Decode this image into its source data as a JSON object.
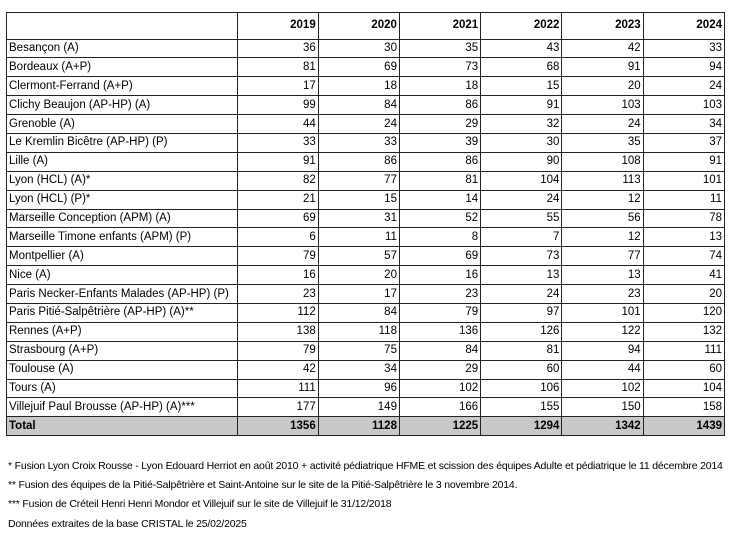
{
  "table": {
    "columns": [
      "",
      "2019",
      "2020",
      "2021",
      "2022",
      "2023",
      "2024"
    ],
    "rows": [
      {
        "name": "Besançon (A)",
        "values": [
          36,
          30,
          35,
          43,
          42,
          33
        ]
      },
      {
        "name": "Bordeaux (A+P)",
        "values": [
          81,
          69,
          73,
          68,
          91,
          94
        ]
      },
      {
        "name": "Clermont-Ferrand (A+P)",
        "values": [
          17,
          18,
          18,
          15,
          20,
          24
        ]
      },
      {
        "name": "Clichy Beaujon (AP-HP) (A)",
        "values": [
          99,
          84,
          86,
          91,
          103,
          103
        ]
      },
      {
        "name": "Grenoble (A)",
        "values": [
          44,
          24,
          29,
          32,
          24,
          34
        ]
      },
      {
        "name": "Le Kremlin Bicêtre (AP-HP) (P)",
        "values": [
          33,
          33,
          39,
          30,
          35,
          37
        ]
      },
      {
        "name": "Lille (A)",
        "values": [
          91,
          86,
          86,
          90,
          108,
          91
        ]
      },
      {
        "name": "Lyon (HCL) (A)*",
        "values": [
          82,
          77,
          81,
          104,
          113,
          101
        ]
      },
      {
        "name": "Lyon (HCL) (P)*",
        "values": [
          21,
          15,
          14,
          24,
          12,
          11
        ]
      },
      {
        "name": "Marseille Conception (APM) (A)",
        "values": [
          69,
          31,
          52,
          55,
          56,
          78
        ]
      },
      {
        "name": "Marseille Timone enfants (APM) (P)",
        "values": [
          6,
          11,
          8,
          7,
          12,
          13
        ]
      },
      {
        "name": "Montpellier (A)",
        "values": [
          79,
          57,
          69,
          73,
          77,
          74
        ]
      },
      {
        "name": "Nice (A)",
        "values": [
          16,
          20,
          16,
          13,
          13,
          41
        ]
      },
      {
        "name": "Paris Necker-Enfants Malades (AP-HP) (P)",
        "values": [
          23,
          17,
          23,
          24,
          23,
          20
        ]
      },
      {
        "name": "Paris Pitié-Salpêtrière (AP-HP) (A)**",
        "values": [
          112,
          84,
          79,
          97,
          101,
          120
        ]
      },
      {
        "name": "Rennes (A+P)",
        "values": [
          138,
          118,
          136,
          126,
          122,
          132
        ]
      },
      {
        "name": "Strasbourg (A+P)",
        "values": [
          79,
          75,
          84,
          81,
          94,
          111
        ]
      },
      {
        "name": "Toulouse (A)",
        "values": [
          42,
          34,
          29,
          60,
          44,
          60
        ]
      },
      {
        "name": "Tours (A)",
        "values": [
          111,
          96,
          102,
          106,
          102,
          104
        ]
      },
      {
        "name": "Villejuif Paul Brousse (AP-HP) (A)***",
        "values": [
          177,
          149,
          166,
          155,
          150,
          158
        ]
      }
    ],
    "total": {
      "name": "Total",
      "values": [
        1356,
        1128,
        1225,
        1294,
        1342,
        1439
      ]
    },
    "total_bg": "#c8c8c8"
  },
  "notes": [
    "* Fusion Lyon Croix Rousse - Lyon Edouard Herriot en août 2010 + activité pédiatrique HFME et scission des équipes Adulte et pédiatrique le 11 décembre 2014",
    "** Fusion des équipes de la Pitié-Salpêtrière et Saint-Antoine sur le site de la Pitié-Salpêtrière le 3 novembre 2014.",
    "*** Fusion de Créteil Henri Henri Mondor  et Villejuif sur le site de Villejuif le 31/12/2018",
    "Données extraites de la base CRISTAL le 25/02/2025"
  ]
}
